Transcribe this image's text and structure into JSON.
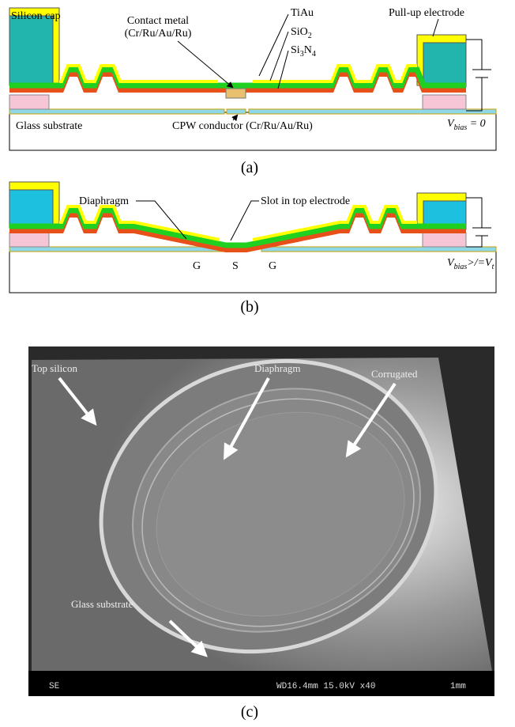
{
  "panel_a": {
    "silicon_cap": "Silicon cap",
    "contact_metal": [
      "Contact metal",
      "(Cr/Ru/Au/Ru)"
    ],
    "tiau": "TiAu",
    "sio2": {
      "base": "SiO",
      "sub": "2"
    },
    "si3n4": [
      "Si",
      "3",
      "N",
      "4"
    ],
    "pull_up_electrode": "Pull-up electrode",
    "glass_substrate": "Glass substrate",
    "cpw_conductor": "CPW conductor (Cr/Ru/Au/Ru)",
    "vbias": {
      "v": "V",
      "sub": "bias",
      "rest": " = 0"
    },
    "caption": "(a)"
  },
  "panel_b": {
    "diaphragm": "Diaphragm",
    "slot": "Slot in top electrode",
    "ground_left": "G",
    "signal": "S",
    "ground_right": "G",
    "vbias": {
      "v": "V",
      "sub": "bias",
      "rest": ">/=V",
      "sub2": "t"
    },
    "caption": "(b)"
  },
  "panel_c": {
    "top_silicon": "Top silicon",
    "diaphragm": "Diaphragm",
    "corrugated": "Corrugated",
    "glass_substrate": "Glass substrate",
    "sem_mode": "SE",
    "sem_params": "WD16.4mm 15.0kV x40",
    "scale_bar": "1mm",
    "caption": "(c)"
  }
}
